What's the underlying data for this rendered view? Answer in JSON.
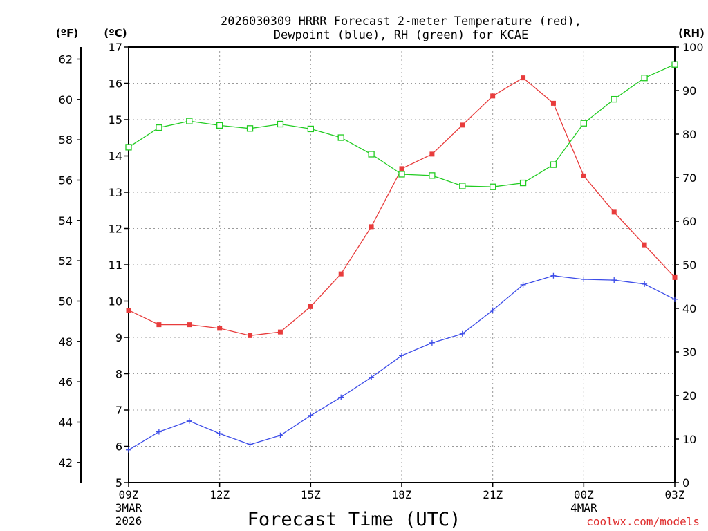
{
  "chart_data": {
    "type": "line",
    "title_line1": "2026030309 HRRR Forecast 2-meter Temperature (red),",
    "title_line2": "Dewpoint (blue), RH (green) for KCAE",
    "xlabel": "Forecast Time (UTC)",
    "credit": "coolwx.com/models",
    "units": {
      "fahrenheit": "(ºF)",
      "celsius": "(ºC)",
      "rh": "(RH)"
    },
    "x": [
      0,
      1,
      2,
      3,
      4,
      5,
      6,
      7,
      8,
      9,
      10,
      11,
      12,
      13,
      14,
      15,
      16,
      17,
      18
    ],
    "xlim": [
      0,
      18
    ],
    "x_ticks": [
      {
        "x": 0,
        "label": "09Z",
        "date1": "3MAR",
        "date2": "2026"
      },
      {
        "x": 3,
        "label": "12Z"
      },
      {
        "x": 6,
        "label": "15Z"
      },
      {
        "x": 9,
        "label": "18Z"
      },
      {
        "x": 12,
        "label": "21Z"
      },
      {
        "x": 15,
        "label": "00Z",
        "date1": "4MAR"
      },
      {
        "x": 18,
        "label": "03Z"
      }
    ],
    "y_left_c": {
      "min": 5,
      "max": 17,
      "ticks": [
        5,
        6,
        7,
        8,
        9,
        10,
        11,
        12,
        13,
        14,
        15,
        16,
        17
      ]
    },
    "y_left_f": {
      "ticks": [
        42,
        44,
        46,
        48,
        50,
        52,
        54,
        56,
        58,
        60,
        62
      ]
    },
    "y_right_rh": {
      "min": 0,
      "max": 100,
      "ticks": [
        0,
        10,
        20,
        30,
        40,
        50,
        60,
        70,
        80,
        90,
        100
      ]
    },
    "series": [
      {
        "name": "Temperature",
        "axis": "celsius",
        "color": "#e83c3c",
        "marker": "filled-square",
        "values": [
          9.75,
          9.35,
          9.35,
          9.25,
          9.05,
          9.15,
          9.85,
          10.75,
          12.05,
          13.65,
          14.05,
          14.85,
          15.65,
          16.15,
          15.45,
          13.45,
          12.45,
          11.55,
          10.65
        ]
      },
      {
        "name": "Dewpoint",
        "axis": "celsius",
        "color": "#3c4ce8",
        "marker": "plus",
        "values": [
          5.9,
          6.4,
          6.7,
          6.35,
          6.05,
          6.3,
          6.85,
          7.35,
          7.9,
          8.5,
          8.85,
          9.1,
          9.75,
          10.45,
          10.7,
          10.6,
          10.58,
          10.47,
          10.05
        ]
      },
      {
        "name": "RH",
        "axis": "rh",
        "color": "#22cc22",
        "marker": "open-square",
        "values": [
          77,
          81.5,
          83,
          82,
          81.3,
          82.3,
          81.2,
          79.2,
          75.4,
          70.8,
          70.5,
          68.1,
          67.9,
          68.8,
          73,
          82.5,
          88,
          92.9,
          96
        ]
      }
    ]
  }
}
